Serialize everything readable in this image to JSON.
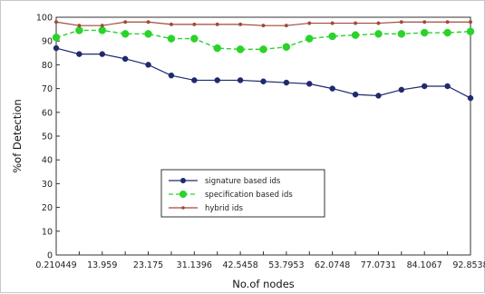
{
  "chart_data": {
    "type": "line",
    "title": "",
    "xlabel": "No.of nodes",
    "ylabel": "%of Detection",
    "ylim": [
      0,
      100
    ],
    "yticks": [
      0,
      10,
      20,
      30,
      40,
      50,
      60,
      70,
      80,
      90,
      100
    ],
    "xtick_labels": [
      "0.210449",
      "13.959",
      "23.175",
      "31.1396",
      "42.5458",
      "53.7953",
      "62.0748",
      "77.0731",
      "84.1067",
      "92.8538"
    ],
    "grid": false,
    "legend_position": "center-left",
    "series": [
      {
        "name": "signature based ids",
        "color": "#1f2a6e",
        "dash": "solid",
        "marker": "circle",
        "values": [
          87,
          84.5,
          84.5,
          82.5,
          80,
          75.5,
          73.5,
          73.5,
          73.5,
          73,
          72.5,
          72,
          70,
          67.5,
          67,
          69.5,
          71,
          71,
          66
        ]
      },
      {
        "name": "specification based ids",
        "color": "#2ad32a",
        "dash": "dashed",
        "marker": "circle",
        "values": [
          91.5,
          94.5,
          94.5,
          93,
          93,
          91,
          91,
          87,
          86.5,
          86.5,
          87.5,
          91,
          92,
          92.5,
          93,
          93,
          93.5,
          93.5,
          94
        ]
      },
      {
        "name": "hybrid ids",
        "color": "#a04a3a",
        "dash": "solid",
        "marker": "dot",
        "values": [
          98,
          96.5,
          96.5,
          98,
          98,
          97,
          97,
          97,
          97,
          96.5,
          96.5,
          97.5,
          97.5,
          97.5,
          97.5,
          98,
          98,
          98,
          98
        ]
      }
    ]
  }
}
